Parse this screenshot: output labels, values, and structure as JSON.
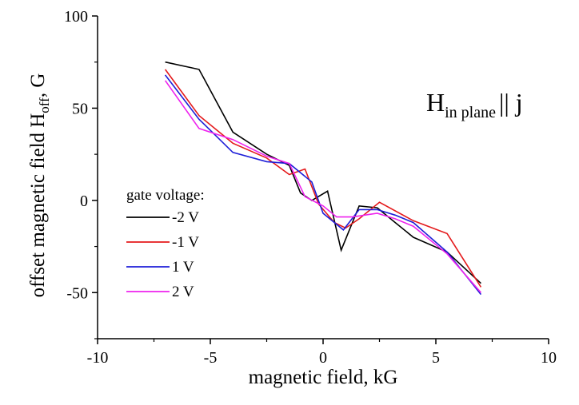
{
  "chart_data": {
    "type": "line",
    "xlabel": "magnetic field, kG",
    "ylabel_main": "offset magnetic field H",
    "ylabel_sub": "off",
    "ylabel_tail": ", G",
    "xlim": [
      -10,
      10
    ],
    "ylim": [
      -75,
      100
    ],
    "x_ticks": [
      -10,
      -5,
      0,
      5,
      10
    ],
    "y_ticks": [
      -50,
      0,
      50,
      100
    ],
    "grid": false,
    "legend": {
      "title": "gate voltage:",
      "placement": "left-middle"
    },
    "annotation": {
      "main": "H",
      "sub": "in plane",
      "tail": "|| j"
    },
    "series": [
      {
        "name": "-2 V",
        "color": "#000000",
        "x": [
          -7,
          -5.5,
          -4,
          -2.5,
          -1.5,
          -1,
          -0.5,
          0.2,
          0.8,
          1.6,
          2.4,
          3.2,
          4,
          5.5,
          7
        ],
        "y": [
          75,
          71,
          37,
          25,
          19,
          4,
          0,
          5,
          -27,
          -3,
          -4,
          -12,
          -20,
          -28,
          -45
        ]
      },
      {
        "name": "-1 V",
        "color": "#e41a1c",
        "x": [
          -7,
          -5.5,
          -4,
          -2.5,
          -1.5,
          -0.8,
          -0.2,
          0.5,
          1,
          1.6,
          2.5,
          4,
          5.5,
          7
        ],
        "y": [
          71,
          46,
          31,
          23,
          14,
          17,
          -2,
          -12,
          -15,
          -10,
          -1,
          -11,
          -18,
          -47
        ]
      },
      {
        "name": "1 V",
        "color": "#1e1ed8",
        "x": [
          -7,
          -5.5,
          -4,
          -2.5,
          -1.5,
          -0.5,
          0,
          0.9,
          1.6,
          2.4,
          3.2,
          4,
          5.5,
          7
        ],
        "y": [
          68,
          44,
          26,
          21,
          20,
          10,
          -7,
          -16,
          -5,
          -5,
          -8,
          -12,
          -28,
          -51
        ]
      },
      {
        "name": "2 V",
        "color": "#ee22ee",
        "x": [
          -7,
          -5.5,
          -4,
          -2.5,
          -1.5,
          -0.8,
          0,
          0.6,
          1.3,
          2.4,
          3.2,
          4,
          5.5,
          7
        ],
        "y": [
          65,
          39,
          33,
          24,
          20,
          2,
          -3,
          -9,
          -9,
          -7,
          -10,
          -14,
          -29,
          -50
        ]
      }
    ]
  }
}
